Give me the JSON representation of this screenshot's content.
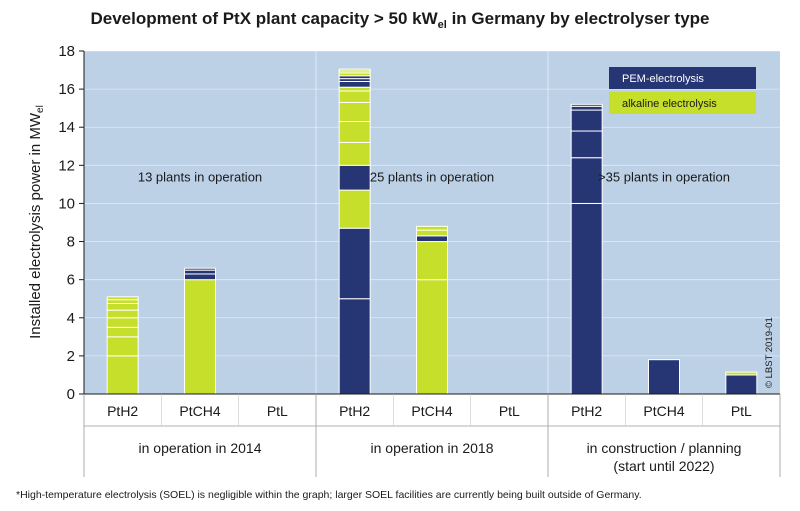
{
  "chart_data": {
    "type": "bar",
    "title": "Development of PtX plant capacity > 50 kW",
    "title_sub": "el",
    "title_tail": " in Germany by electrolyser type",
    "ylabel": "Installed electrolysis power in MW",
    "ylabel_sub": "el",
    "ylim": [
      0,
      18
    ],
    "yticks": [
      0,
      2,
      4,
      6,
      8,
      10,
      12,
      14,
      16,
      18
    ],
    "grid": true,
    "legend_position": "top-right",
    "colors": {
      "pem": "#263573",
      "alkaline": "#c6df2a",
      "plot_bg": "#bcd0e6",
      "divider": "#ffffff"
    },
    "series": [
      {
        "name": "PEM-electrolysis",
        "key": "pem"
      },
      {
        "name": "alkaline electrolysis",
        "key": "alkaline"
      }
    ],
    "groups": [
      {
        "label": "in operation in 2014",
        "note": "13 plants in operation",
        "bars": [
          {
            "category": "PtH2",
            "segments": [
              {
                "series": "alkaline",
                "value": 2.0
              },
              {
                "series": "alkaline",
                "value": 1.0
              },
              {
                "series": "alkaline",
                "value": 0.5
              },
              {
                "series": "alkaline",
                "value": 0.5
              },
              {
                "series": "alkaline",
                "value": 0.4
              },
              {
                "series": "alkaline",
                "value": 0.35
              },
              {
                "series": "alkaline",
                "value": 0.2
              },
              {
                "series": "alkaline",
                "value": 0.15
              }
            ]
          },
          {
            "category": "PtCH4",
            "segments": [
              {
                "series": "alkaline",
                "value": 6.0
              },
              {
                "series": "pem",
                "value": 0.3
              },
              {
                "series": "pem",
                "value": 0.2
              },
              {
                "series": "pem",
                "value": 0.1
              }
            ]
          },
          {
            "category": "PtL",
            "segments": []
          }
        ]
      },
      {
        "label": "in operation in 2018",
        "note": "25 plants in operation",
        "bars": [
          {
            "category": "PtH2",
            "segments": [
              {
                "series": "pem",
                "value": 5.0
              },
              {
                "series": "pem",
                "value": 3.7
              },
              {
                "series": "alkaline",
                "value": 2.0
              },
              {
                "series": "pem",
                "value": 1.3
              },
              {
                "series": "alkaline",
                "value": 1.2
              },
              {
                "series": "alkaline",
                "value": 1.1
              },
              {
                "series": "alkaline",
                "value": 1.0
              },
              {
                "series": "alkaline",
                "value": 0.6
              },
              {
                "series": "alkaline",
                "value": 0.2
              },
              {
                "series": "pem",
                "value": 0.3
              },
              {
                "series": "pem",
                "value": 0.15
              },
              {
                "series": "pem",
                "value": 0.15
              },
              {
                "series": "alkaline",
                "value": 0.15
              },
              {
                "series": "alkaline",
                "value": 0.1
              },
              {
                "series": "alkaline",
                "value": 0.1
              }
            ]
          },
          {
            "category": "PtCH4",
            "segments": [
              {
                "series": "alkaline",
                "value": 6.0
              },
              {
                "series": "alkaline",
                "value": 2.0
              },
              {
                "series": "pem",
                "value": 0.3
              },
              {
                "series": "alkaline",
                "value": 0.3
              },
              {
                "series": "alkaline",
                "value": 0.2
              }
            ]
          },
          {
            "category": "PtL",
            "segments": []
          }
        ]
      },
      {
        "label": "in construction / planning",
        "label2": "(start until 2022)",
        "note": ">35 plants in operation",
        "bars": [
          {
            "category": "PtH2",
            "segments": [
              {
                "series": "pem",
                "value": 10.0
              },
              {
                "series": "pem",
                "value": 2.4
              },
              {
                "series": "pem",
                "value": 1.4
              },
              {
                "series": "pem",
                "value": 1.1
              },
              {
                "series": "pem",
                "value": 0.2
              },
              {
                "series": "pem",
                "value": 0.1
              }
            ]
          },
          {
            "category": "PtCH4",
            "segments": [
              {
                "series": "pem",
                "value": 1.8
              }
            ]
          },
          {
            "category": "PtL",
            "segments": [
              {
                "series": "pem",
                "value": 1.0
              },
              {
                "series": "alkaline",
                "value": 0.15
              }
            ]
          }
        ]
      }
    ],
    "footnote": "*High-temperature electrolysis (SOEL) is negligible within the graph; larger SOEL facilities are currently being built outside of Germany.",
    "copyright": "© LBST 2019-01"
  }
}
